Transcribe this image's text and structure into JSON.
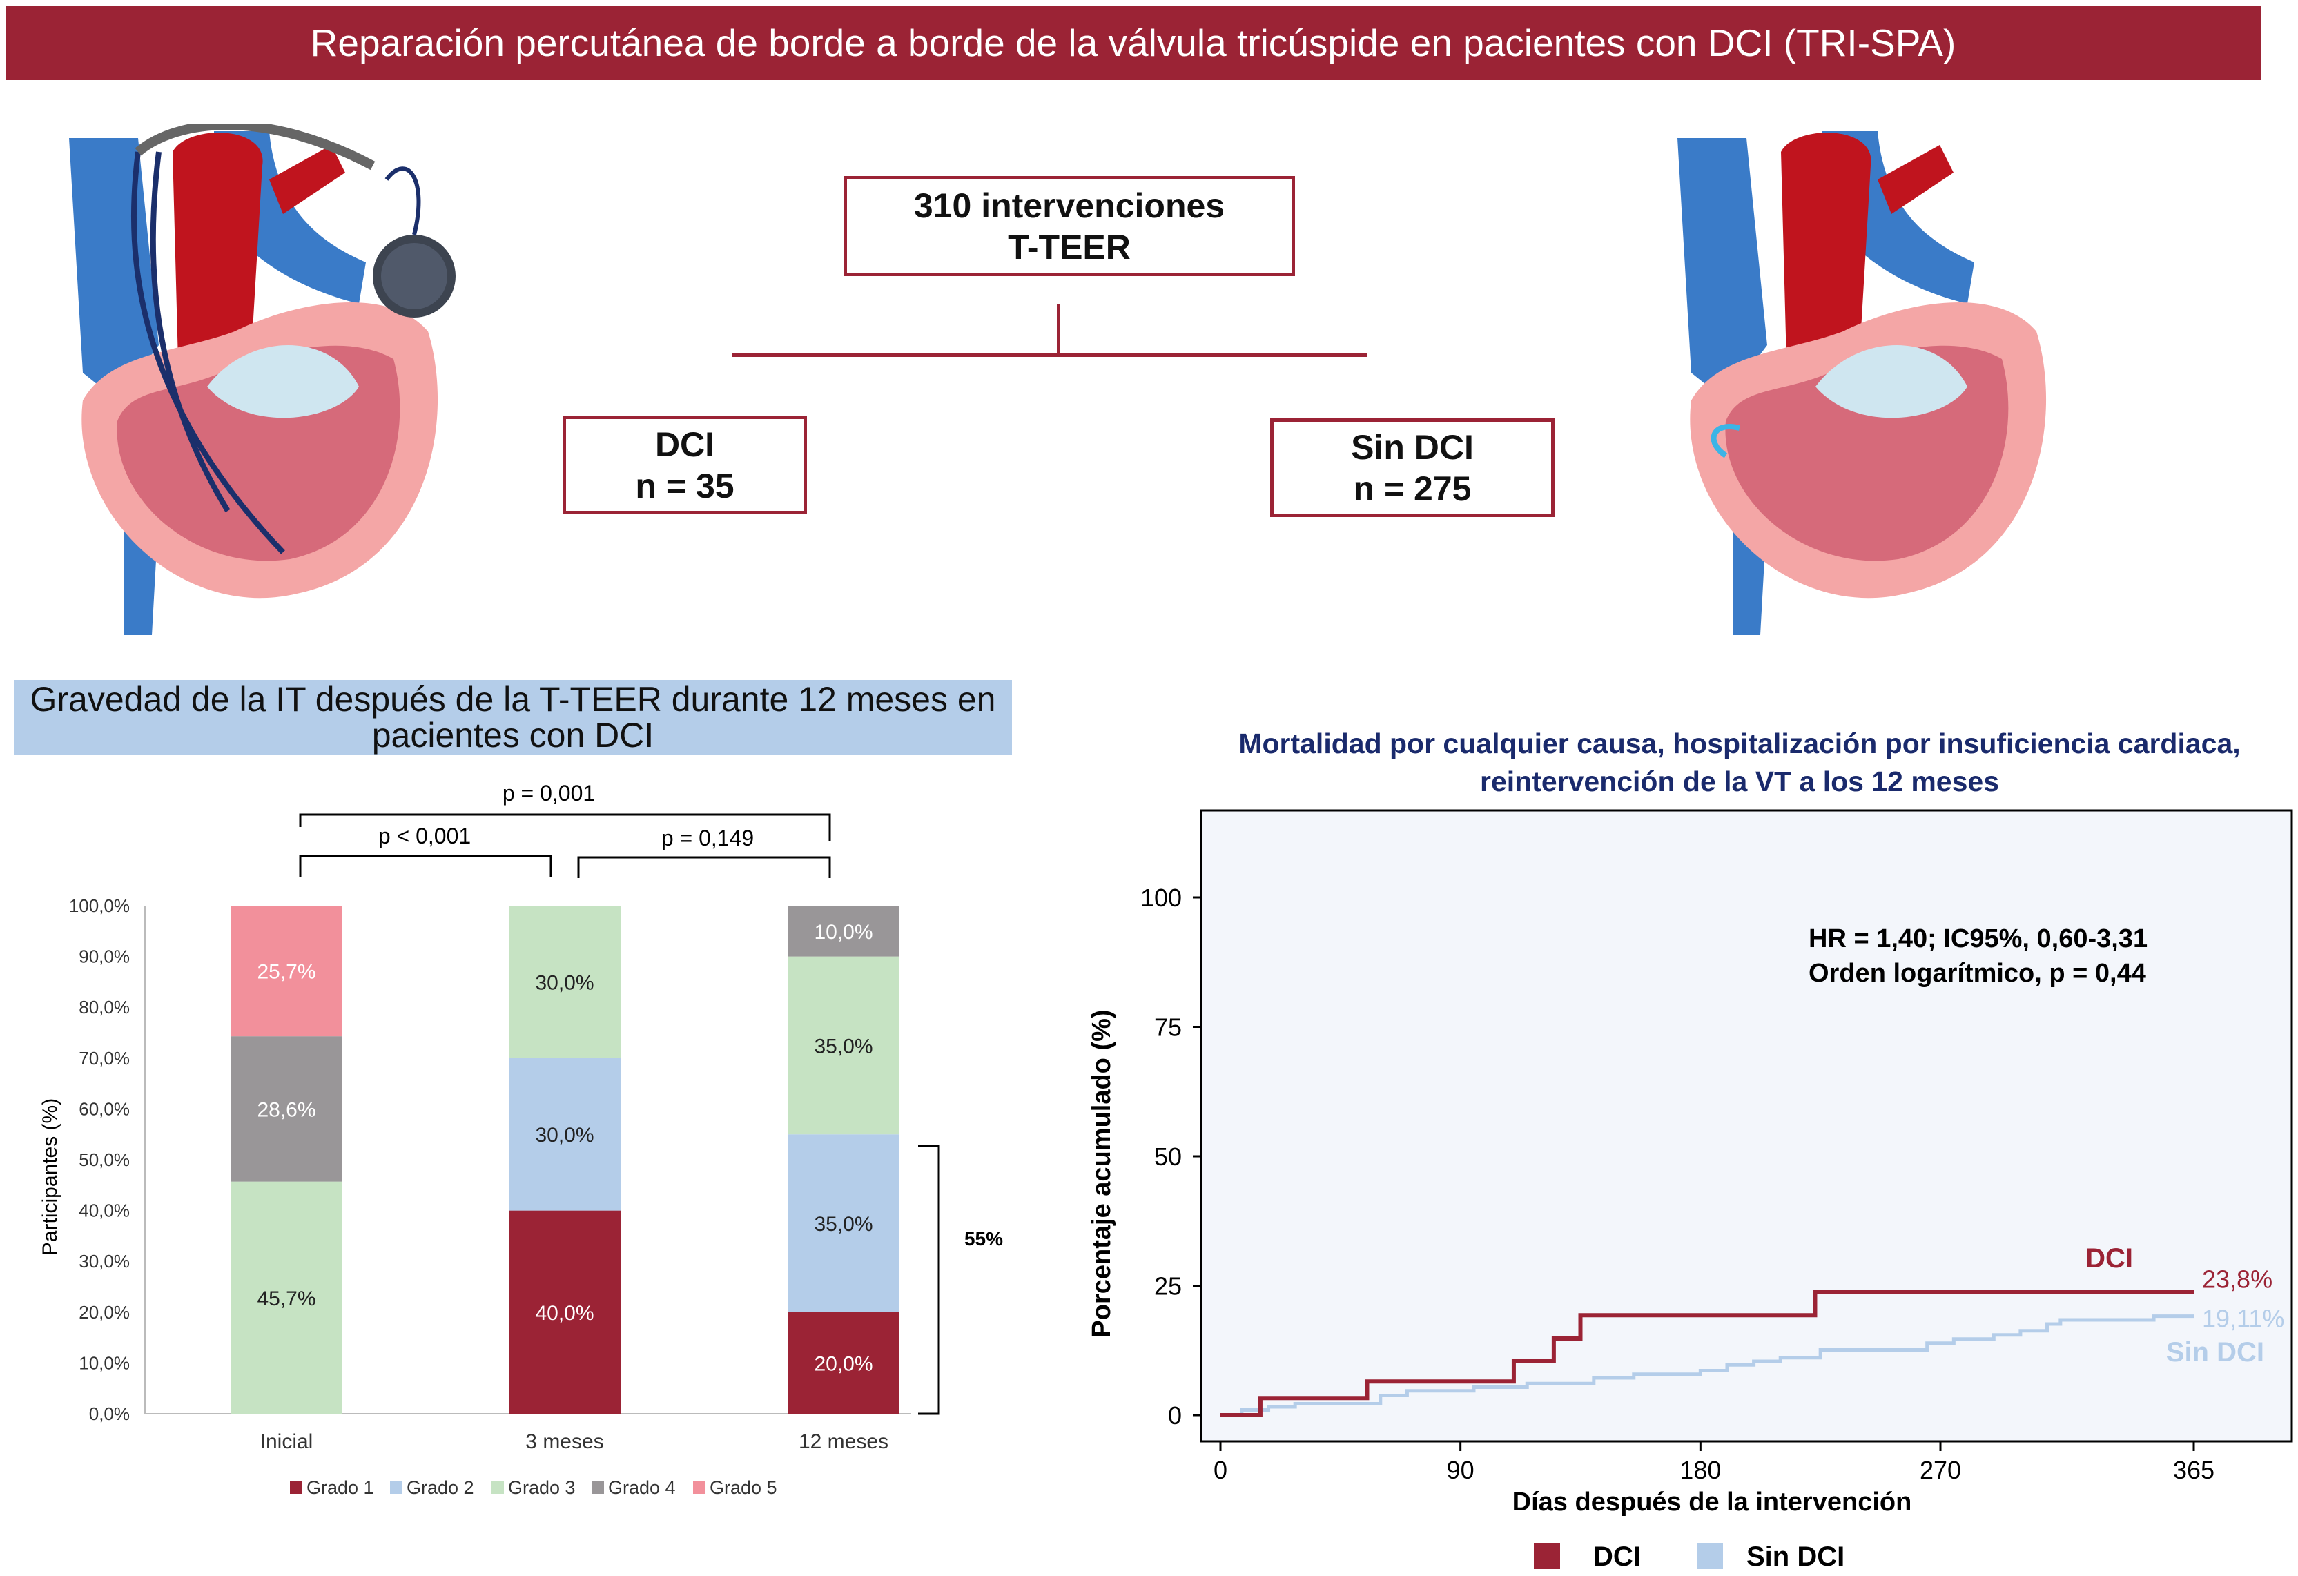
{
  "banner": {
    "title": "Reparación percutánea de borde a borde de la válvula tricúspide en pacientes con DCI (TRI-SPA)"
  },
  "flow": {
    "total": {
      "line1": "310 intervenciones",
      "line2": "T-TEER"
    },
    "dci": {
      "line1": "DCI",
      "line2": "n = 35"
    },
    "sin_dci": {
      "line1": "Sin DCI",
      "line2": "n = 275"
    }
  },
  "bar_section": {
    "title_line1": "Gravedad de la IT después de la T-TEER durante 12 meses en",
    "title_line2": "pacientes con DCI"
  },
  "km_section": {
    "title_line1": "Mortalidad por cualquier causa, hospitalización por insuficiencia cardiaca,",
    "title_line2": "reintervención de la VT a los 12 meses"
  },
  "colors": {
    "brand": "#9b2335",
    "grado1": "#9b2335",
    "grado2": "#b4cde9",
    "grado3": "#c6e3c3",
    "grado4": "#999698",
    "grado5": "#f2909b",
    "sin_dci": "#b4cde9",
    "km_bg": "#f3f6fb",
    "km_title": "#1a2a6c"
  },
  "chart_data": [
    {
      "type": "bar",
      "stacked": true,
      "categories": [
        "Inicial",
        "3 meses",
        "12 meses"
      ],
      "ylabel": "Participantes (%)",
      "yticks": [
        "0,0%",
        "10,0%",
        "20,0%",
        "30,0%",
        "40,0%",
        "50,0%",
        "60,0%",
        "70,0%",
        "80,0%",
        "90,0%",
        "100,0%"
      ],
      "ylim": [
        0,
        100
      ],
      "series": [
        {
          "name": "Grado 1",
          "values": [
            0,
            40.0,
            20.0
          ],
          "labels": [
            "",
            "40,0%",
            "20,0%"
          ]
        },
        {
          "name": "Grado 2",
          "values": [
            0,
            30.0,
            35.0
          ],
          "labels": [
            "",
            "30,0%",
            "35,0%"
          ]
        },
        {
          "name": "Grado 3",
          "values": [
            45.7,
            30.0,
            35.0
          ],
          "labels": [
            "45,7%",
            "30,0%",
            "35,0%"
          ]
        },
        {
          "name": "Grado 4",
          "values": [
            28.6,
            0,
            10.0
          ],
          "labels": [
            "28,6%",
            "",
            "10,0%"
          ]
        },
        {
          "name": "Grado 5",
          "values": [
            25.7,
            0,
            0
          ],
          "labels": [
            "25,7%",
            "",
            ""
          ]
        }
      ],
      "annotations": {
        "p_overall": "p = 0,001",
        "p_1": "p < 0,001",
        "p_2": "p = 0,149",
        "bracket": "55%"
      },
      "legend": "bottom"
    },
    {
      "type": "line",
      "step": true,
      "xlabel": "Días después de la intervención",
      "ylabel": "Porcentaje acumulado (%)",
      "xticks": [
        0,
        90,
        180,
        270,
        365
      ],
      "yticks": [
        0,
        25,
        50,
        75,
        100
      ],
      "xlim": [
        0,
        365
      ],
      "ylim": [
        0,
        100
      ],
      "annotation_line1": "HR = 1,40; IC95%, 0,60-3,31",
      "annotation_line2": "Orden logarítmico, p = 0,44",
      "series": [
        {
          "name": "DCI",
          "end_label": "23,8%",
          "points": [
            [
              0,
              0
            ],
            [
              15,
              0
            ],
            [
              15,
              3.3
            ],
            [
              55,
              3.3
            ],
            [
              55,
              6.5
            ],
            [
              110,
              6.5
            ],
            [
              110,
              10.5
            ],
            [
              125,
              10.5
            ],
            [
              125,
              14.8
            ],
            [
              135,
              14.8
            ],
            [
              135,
              19.3
            ],
            [
              223,
              19.3
            ],
            [
              223,
              23.8
            ],
            [
              365,
              23.8
            ]
          ]
        },
        {
          "name": "Sin DCI",
          "end_label": "19,11%",
          "points": [
            [
              0,
              0
            ],
            [
              8,
              0
            ],
            [
              8,
              1
            ],
            [
              18,
              1
            ],
            [
              18,
              1.6
            ],
            [
              28,
              1.6
            ],
            [
              28,
              2.2
            ],
            [
              60,
              2.2
            ],
            [
              60,
              3.8
            ],
            [
              70,
              3.8
            ],
            [
              70,
              4.7
            ],
            [
              95,
              4.7
            ],
            [
              95,
              5.4
            ],
            [
              115,
              5.4
            ],
            [
              115,
              6.1
            ],
            [
              140,
              6.1
            ],
            [
              140,
              7.2
            ],
            [
              155,
              7.2
            ],
            [
              155,
              7.9
            ],
            [
              180,
              7.9
            ],
            [
              180,
              8.6
            ],
            [
              190,
              8.6
            ],
            [
              190,
              9.7
            ],
            [
              200,
              9.7
            ],
            [
              200,
              10.4
            ],
            [
              210,
              10.4
            ],
            [
              210,
              11.1
            ],
            [
              225,
              11.1
            ],
            [
              225,
              12.6
            ],
            [
              265,
              12.6
            ],
            [
              265,
              13.9
            ],
            [
              275,
              13.9
            ],
            [
              275,
              14.7
            ],
            [
              290,
              14.7
            ],
            [
              290,
              15.5
            ],
            [
              300,
              15.5
            ],
            [
              300,
              16.3
            ],
            [
              310,
              16.3
            ],
            [
              310,
              17.6
            ],
            [
              315,
              17.6
            ],
            [
              315,
              18.4
            ],
            [
              350,
              18.4
            ],
            [
              350,
              19.11
            ],
            [
              365,
              19.11
            ]
          ]
        }
      ],
      "legend": "bottom"
    }
  ]
}
